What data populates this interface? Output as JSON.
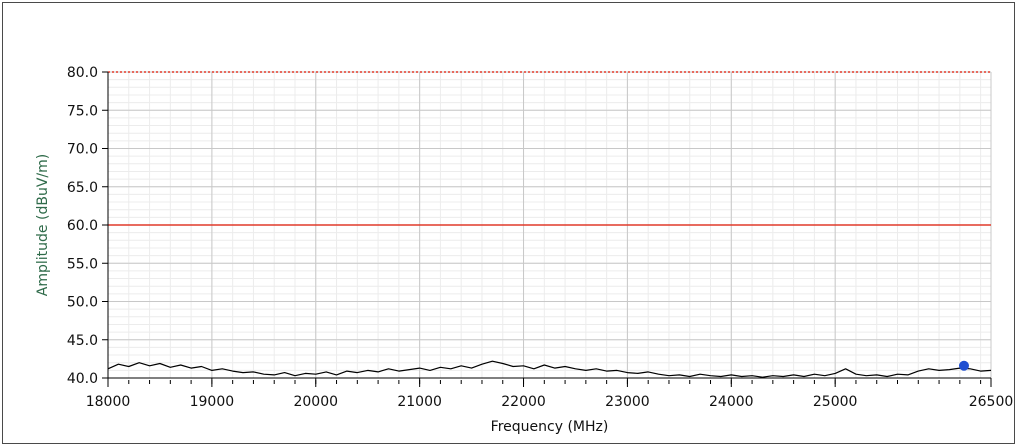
{
  "chart_data": {
    "type": "line",
    "title": "",
    "xlabel": "Frequency (MHz)",
    "ylabel": "Amplitude (dBuV/m)",
    "xlim": [
      18000,
      26500
    ],
    "ylim": [
      40,
      80
    ],
    "x_ticks": [
      18000,
      19000,
      20000,
      21000,
      22000,
      23000,
      24000,
      25000,
      26500
    ],
    "x_tick_labels": [
      "18000",
      "19000",
      "20000",
      "21000",
      "22000",
      "23000",
      "24000",
      "25000",
      "26500"
    ],
    "y_ticks": [
      40,
      45,
      50,
      55,
      60,
      65,
      70,
      75,
      80
    ],
    "y_tick_labels": [
      "40.0",
      "45.0",
      "50.0",
      "55.0",
      "60.0",
      "65.0",
      "70.0",
      "75.0",
      "80.0"
    ],
    "grid": true,
    "legend": "none",
    "series": [
      {
        "role": "measured spectrum",
        "color": "#000000",
        "style": "solid",
        "x": [
          18000,
          18100,
          18200,
          18300,
          18400,
          18500,
          18600,
          18700,
          18800,
          18900,
          19000,
          19100,
          19200,
          19300,
          19400,
          19500,
          19600,
          19700,
          19800,
          19900,
          20000,
          20100,
          20200,
          20300,
          20400,
          20500,
          20600,
          20700,
          20800,
          20900,
          21000,
          21100,
          21200,
          21300,
          21400,
          21500,
          21600,
          21700,
          21800,
          21900,
          22000,
          22100,
          22200,
          22300,
          22400,
          22500,
          22600,
          22700,
          22800,
          22900,
          23000,
          23100,
          23200,
          23300,
          23400,
          23500,
          23600,
          23700,
          23800,
          23900,
          24000,
          24100,
          24200,
          24300,
          24400,
          24500,
          24600,
          24700,
          24800,
          24900,
          25000,
          25100,
          25200,
          25300,
          25400,
          25500,
          25600,
          25700,
          25800,
          25900,
          26000,
          26100,
          26200,
          26300,
          26400,
          26500
        ],
        "y": [
          41.2,
          41.8,
          41.5,
          42.0,
          41.6,
          41.9,
          41.4,
          41.7,
          41.3,
          41.5,
          41.0,
          41.2,
          40.9,
          40.7,
          40.8,
          40.5,
          40.4,
          40.7,
          40.3,
          40.6,
          40.5,
          40.8,
          40.4,
          40.9,
          40.7,
          41.0,
          40.8,
          41.2,
          40.9,
          41.1,
          41.3,
          41.0,
          41.4,
          41.2,
          41.6,
          41.3,
          41.8,
          42.2,
          41.9,
          41.5,
          41.6,
          41.2,
          41.7,
          41.3,
          41.5,
          41.2,
          41.0,
          41.2,
          40.9,
          41.0,
          40.7,
          40.6,
          40.8,
          40.5,
          40.3,
          40.4,
          40.2,
          40.5,
          40.3,
          40.2,
          40.4,
          40.2,
          40.3,
          40.1,
          40.3,
          40.2,
          40.4,
          40.2,
          40.5,
          40.3,
          40.6,
          41.2,
          40.5,
          40.3,
          40.4,
          40.2,
          40.5,
          40.4,
          40.9,
          41.2,
          41.0,
          41.1,
          41.3,
          41.2,
          40.9,
          41.0
        ]
      },
      {
        "role": "limit line",
        "color": "#e03a2a",
        "style": "solid",
        "x": [
          18000,
          26500
        ],
        "y": [
          60,
          60
        ]
      },
      {
        "role": "limit line",
        "color": "#e03a2a",
        "style": "dotted",
        "x": [
          18000,
          26500
        ],
        "y": [
          80,
          80
        ]
      }
    ],
    "markers": [
      {
        "x": 26240,
        "y": 41.6,
        "color": "#1f4fd1"
      }
    ],
    "colors": {
      "grid_major": "#c8c8c8",
      "grid_minor": "#ececec",
      "axis": "#000000",
      "ylabel_color": "#2f6b4a",
      "xlabel_color": "#111111"
    }
  }
}
